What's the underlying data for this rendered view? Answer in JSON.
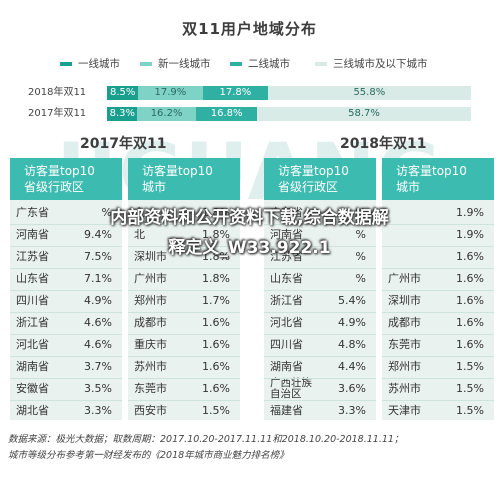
{
  "chart_data": {
    "type": "bar",
    "subtype": "stacked-100",
    "title": "双11用户地域分布",
    "series": [
      {
        "name": "一线城市",
        "color": "#1a9f8f"
      },
      {
        "name": "新一线城市",
        "color": "#7fd2c6"
      },
      {
        "name": "二线城市",
        "color": "#2fb0a3"
      },
      {
        "name": "三线城市及以下城市",
        "color": "#d9ebe6"
      }
    ],
    "categories": [
      "2018年双11",
      "2017年双11"
    ],
    "values": [
      [
        8.5,
        17.9,
        17.8,
        55.8
      ],
      [
        8.3,
        16.2,
        16.8,
        58.7
      ]
    ],
    "value_labels": [
      [
        "8.5%",
        "17.9%",
        "17.8%",
        "55.8%"
      ],
      [
        "8.3%",
        "16.2%",
        "16.8%",
        "58.7%"
      ]
    ],
    "value_max": 100
  },
  "sections": {
    "year2017": "2017年双11",
    "year2018": "2018年双11"
  },
  "watermark": "JIGUANG",
  "tables": [
    {
      "header1": "访客量top10",
      "header2": "省级行政区",
      "rows": [
        {
          "name": "广东省",
          "value": "%"
        },
        {
          "name": "河南省",
          "value": "9.4%"
        },
        {
          "name": "江苏省",
          "value": "7.5%"
        },
        {
          "name": "山东省",
          "value": "7.1%"
        },
        {
          "name": "四川省",
          "value": "4.9%"
        },
        {
          "name": "浙江省",
          "value": "4.6%"
        },
        {
          "name": "河北省",
          "value": "4.6%"
        },
        {
          "name": "湖南省",
          "value": "3.7%"
        },
        {
          "name": "安徽省",
          "value": "3.5%"
        },
        {
          "name": "湖北省",
          "value": "3.3%"
        }
      ]
    },
    {
      "header1": "访客量top10",
      "header2": "城市",
      "rows": [
        {
          "name": "上",
          "value": "1.8%"
        },
        {
          "name": "北",
          "value": "1.8%"
        },
        {
          "name": "深圳市",
          "value": "1.8%"
        },
        {
          "name": "广州市",
          "value": "1.8%"
        },
        {
          "name": "郑州市",
          "value": "1.7%"
        },
        {
          "name": "成都市",
          "value": "1.6%"
        },
        {
          "name": "重庆市",
          "value": "1.6%"
        },
        {
          "name": "苏州市",
          "value": "1.6%"
        },
        {
          "name": "东莞市",
          "value": "1.6%"
        },
        {
          "name": "西安市",
          "value": "1.5%"
        }
      ]
    },
    {
      "header1": "访客量top10",
      "header2": "省级行政区",
      "rows": [
        {
          "name": "广东省",
          "value": "%"
        },
        {
          "name": "河南省",
          "value": "%"
        },
        {
          "name": "江苏省",
          "value": "%"
        },
        {
          "name": "山东省",
          "value": "%"
        },
        {
          "name": "浙江省",
          "value": "5.4%"
        },
        {
          "name": "河北省",
          "value": "4.9%"
        },
        {
          "name": "四川省",
          "value": "4.8%"
        },
        {
          "name": "湖南省",
          "value": "4.4%"
        },
        {
          "name": "广西壮族自治区",
          "value": "3.6%"
        },
        {
          "name": "福建省",
          "value": "3.3%"
        }
      ]
    },
    {
      "header1": "访客量top10",
      "header2": "城市",
      "rows": [
        {
          "name": "",
          "value": "1.9%"
        },
        {
          "name": "",
          "value": "1.9%"
        },
        {
          "name": "",
          "value": "1.6%"
        },
        {
          "name": "广州市",
          "value": "1.6%"
        },
        {
          "name": "深圳市",
          "value": "1.6%"
        },
        {
          "name": "成都市",
          "value": "1.6%"
        },
        {
          "name": "东莞市",
          "value": "1.6%"
        },
        {
          "name": "郑州市",
          "value": "1.5%"
        },
        {
          "name": "苏州市",
          "value": "1.5%"
        },
        {
          "name": "天津市",
          "value": "1.5%"
        }
      ]
    }
  ],
  "overlay": {
    "line1": "内部资料和公开资料下载,综合数据解",
    "line2": "释定义_W33.922.1"
  },
  "footer": {
    "line1": "数据来源：极光大数据；取数周期：2017.10.20-2017.11.11和2018.10.20-2018.11.11；",
    "line2": "城市等级分布参考第一财经发布的《2018年城市商业魅力排名榜》"
  }
}
